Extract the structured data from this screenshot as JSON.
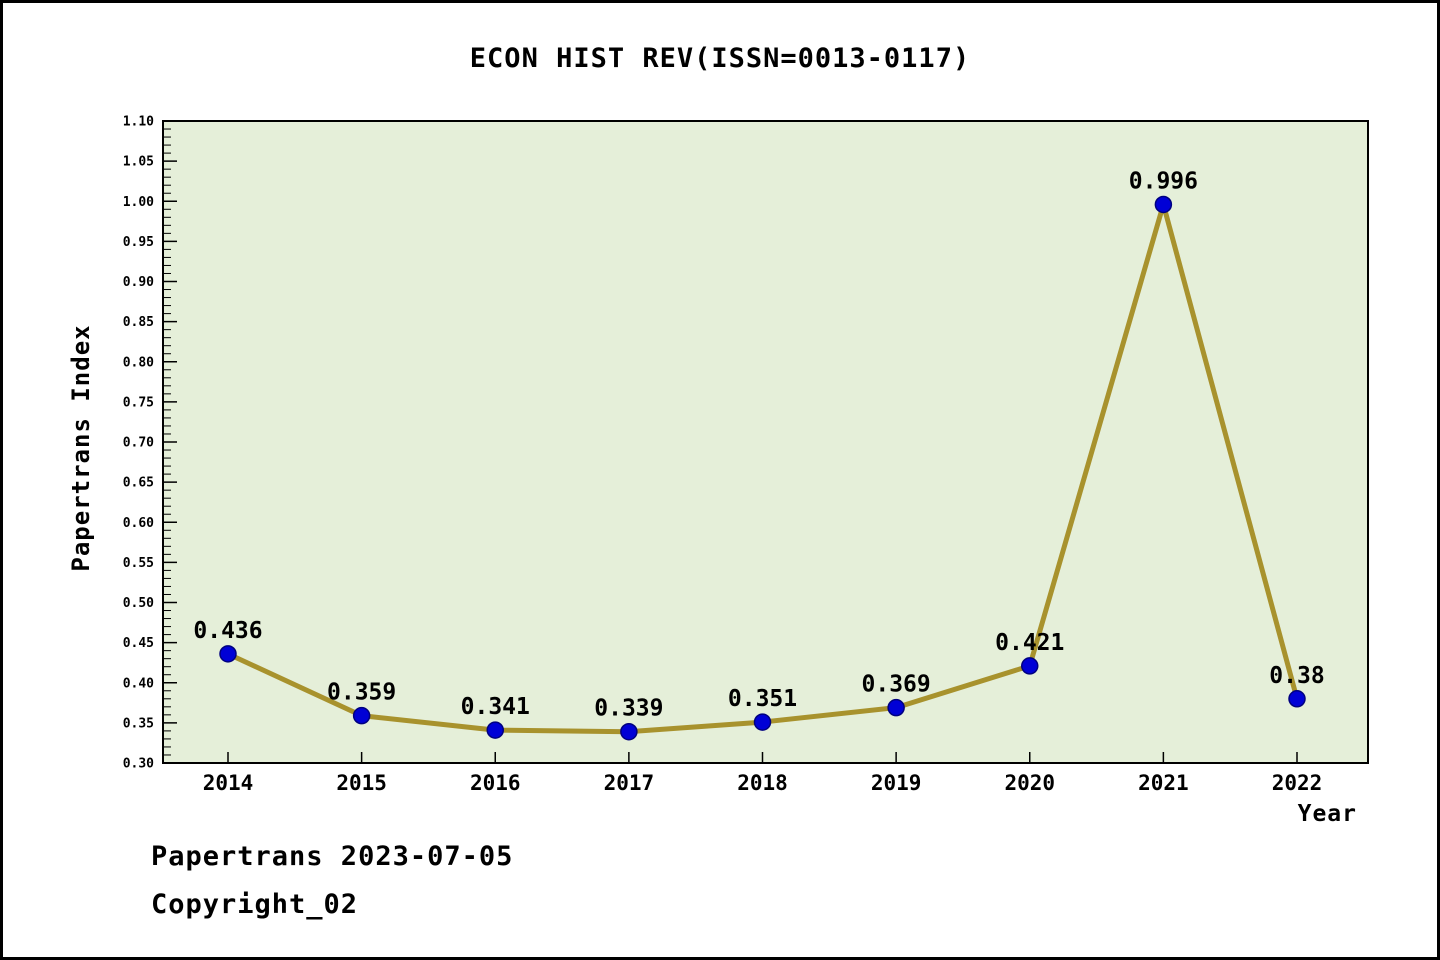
{
  "chart": {
    "title": "ECON HIST REV(ISSN=0013-0117)",
    "ylabel": "Papertrans Index",
    "xlabel": "Year",
    "footer_line1": "Papertrans 2023-07-05",
    "footer_line2": "Copyright_02"
  },
  "chart_data": {
    "type": "line",
    "x": [
      "2014",
      "2015",
      "2016",
      "2017",
      "2018",
      "2019",
      "2020",
      "2021",
      "2022"
    ],
    "values": [
      0.436,
      0.359,
      0.341,
      0.339,
      0.351,
      0.369,
      0.421,
      0.996,
      0.38
    ],
    "point_labels": [
      "0.436",
      "0.359",
      "0.341",
      "0.339",
      "0.351",
      "0.369",
      "0.421",
      "0.996",
      "0.38"
    ],
    "title": "ECON HIST REV(ISSN=0013-0117)",
    "xlabel": "Year",
    "ylabel": "Papertrans Index",
    "ylim": [
      0.3,
      1.1
    ],
    "yticks": [
      "0.30",
      "0.35",
      "0.40",
      "0.45",
      "0.50",
      "0.55",
      "0.60",
      "0.65",
      "0.70",
      "0.75",
      "0.80",
      "0.85",
      "0.90",
      "0.95",
      "1.00",
      "1.05",
      "1.10"
    ],
    "minor_tick_step": 0.01,
    "grid": "off",
    "legend": "none",
    "colors": {
      "plot_bg": "#e5efd9",
      "line": "#a8922d",
      "marker": "#0000d6",
      "marker_edge": "#000080",
      "text": "#000000"
    }
  }
}
